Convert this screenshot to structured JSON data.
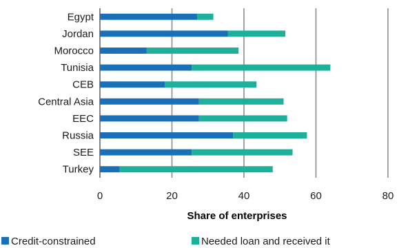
{
  "chart_data": {
    "type": "bar",
    "orientation": "horizontal",
    "stacked": true,
    "title": "",
    "xlabel": "Share of enterprises",
    "ylabel": "",
    "xlim": [
      0,
      80
    ],
    "xticks": [
      0,
      20,
      40,
      60,
      80
    ],
    "grid": "vertical",
    "legend_position": "bottom",
    "categories": [
      "Egypt",
      "Jordan",
      "Morocco",
      "Tunisia",
      "CEB",
      "Central Asia",
      "EEC",
      "Russia",
      "SEE",
      "Turkey"
    ],
    "series": [
      {
        "name": "Credit-constrained",
        "color": "#1a6fb9",
        "values": [
          27,
          35.5,
          13,
          25.5,
          18,
          27.5,
          27.5,
          37,
          25.5,
          5.5
        ]
      },
      {
        "name": "Needed loan and received it",
        "color": "#1db09b",
        "values": [
          4.5,
          16,
          25.5,
          38.5,
          25.5,
          23.5,
          24.5,
          20.5,
          28,
          42.5
        ]
      }
    ]
  }
}
